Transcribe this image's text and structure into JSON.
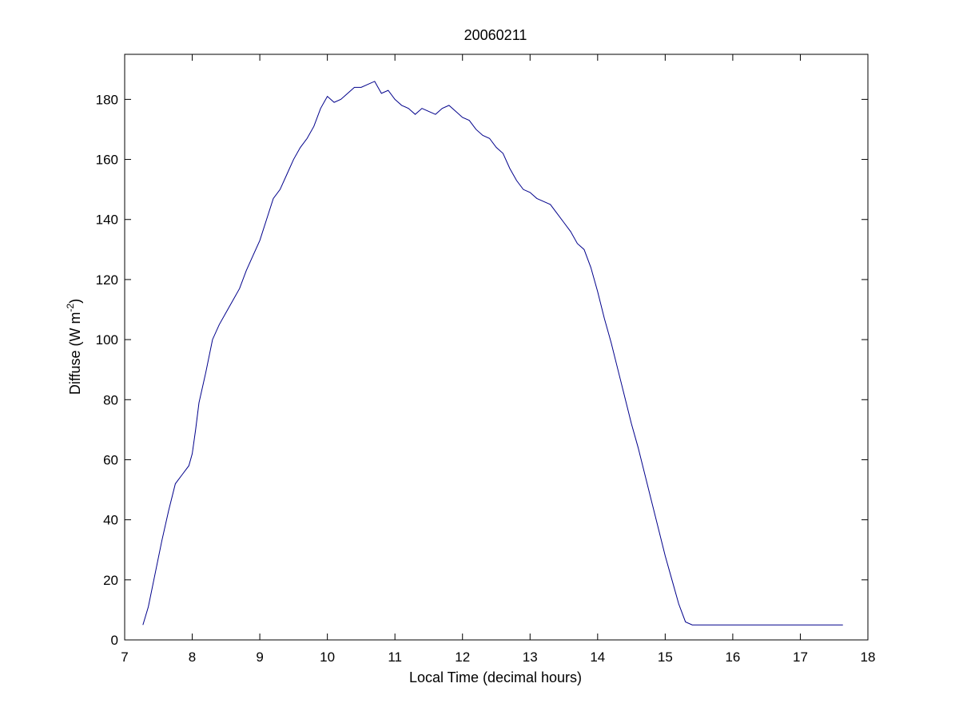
{
  "chart_data": {
    "type": "line",
    "title": "20060211",
    "xlabel": "Local Time (decimal hours)",
    "ylabel": {
      "base": "Diffuse (W m",
      "superscript": "-2",
      "close": ")"
    },
    "xlim": [
      7,
      18
    ],
    "ylim": [
      0,
      195
    ],
    "xticks": [
      7,
      8,
      9,
      10,
      11,
      12,
      13,
      14,
      15,
      16,
      17,
      18
    ],
    "yticks": [
      0,
      20,
      40,
      60,
      80,
      100,
      120,
      140,
      160,
      180
    ],
    "grid": false,
    "line_color": "#00008B",
    "series": [
      {
        "x": [
          7.27,
          7.35,
          7.45,
          7.55,
          7.65,
          7.75,
          7.85,
          7.95,
          8.0,
          8.05,
          8.1,
          8.2,
          8.3,
          8.4,
          8.5,
          8.6,
          8.7,
          8.8,
          8.9,
          9.0,
          9.1,
          9.2,
          9.3,
          9.4,
          9.5,
          9.6,
          9.7,
          9.8,
          9.9,
          10.0,
          10.1,
          10.2,
          10.3,
          10.4,
          10.5,
          10.6,
          10.7,
          10.8,
          10.9,
          11.0,
          11.1,
          11.2,
          11.3,
          11.4,
          11.5,
          11.6,
          11.7,
          11.8,
          11.9,
          12.0,
          12.1,
          12.2,
          12.3,
          12.4,
          12.5,
          12.6,
          12.7,
          12.8,
          12.9,
          13.0,
          13.1,
          13.2,
          13.3,
          13.4,
          13.5,
          13.6,
          13.7,
          13.8,
          13.9,
          14.0,
          14.1,
          14.2,
          14.3,
          14.4,
          14.5,
          14.6,
          14.7,
          14.8,
          14.9,
          15.0,
          15.1,
          15.2,
          15.3,
          15.4,
          15.5,
          15.6,
          15.7,
          15.8,
          15.9,
          16.0,
          16.1,
          16.2,
          16.3,
          16.4,
          16.5,
          16.6,
          16.7,
          16.8,
          16.9,
          17.0,
          17.1,
          17.2,
          17.3,
          17.4,
          17.5,
          17.6,
          17.63
        ],
        "y": [
          5,
          11,
          22,
          33,
          43,
          52,
          55,
          58,
          62,
          70,
          79,
          89,
          100,
          105,
          109,
          113,
          117,
          123,
          128,
          133,
          140,
          147,
          150,
          155,
          160,
          164,
          167,
          171,
          177,
          181,
          179,
          180,
          182,
          184,
          184,
          185,
          186,
          182,
          183,
          180,
          178,
          177,
          175,
          177,
          176,
          175,
          177,
          178,
          176,
          174,
          173,
          170,
          168,
          167,
          164,
          162,
          157,
          153,
          150,
          149,
          147,
          146,
          145,
          142,
          139,
          136,
          132,
          130,
          124,
          116,
          107,
          99,
          90,
          81,
          72,
          64,
          55,
          46,
          37,
          28,
          20,
          12,
          6,
          5,
          5,
          5,
          5,
          5,
          5,
          5,
          5,
          5,
          5,
          5,
          5,
          5,
          5,
          5,
          5,
          5,
          5,
          5,
          5,
          5,
          5,
          5,
          5
        ]
      }
    ]
  }
}
